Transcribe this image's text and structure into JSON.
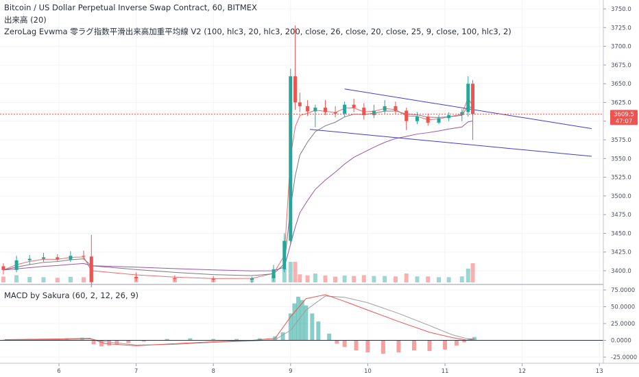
{
  "header": {
    "line1": "Bitcoin / US Dollar Perpetual Inverse Swap Contract, 60, BITMEX",
    "line2": "出来高 (20)",
    "line3": "ZeroLag Evwma 零ラグ指数平滑出来高加重平均線 V2 (100, hlc3, 20, hlc3, 200, close, 26, close, 20, close, 25, 9, close, 100, hlc3, 2)"
  },
  "macd_panel": {
    "title": "MACD by Sakura (60, 2, 12, 26, 9)"
  },
  "price_tag": {
    "value": "3609.5",
    "countdown": "47:07"
  },
  "colors": {
    "up": "#26a69a",
    "down": "#ef5350",
    "channel": "#3b3bd6",
    "ma_fast": "#f06a6a",
    "ma_mid": "#7a7a7a",
    "ma_slow": "#9c54a8",
    "ma_dark": "#555555",
    "macd_line": "#ef5350",
    "signal_line": "#9e9e9e"
  },
  "chart_data": [
    {
      "type": "candlestick",
      "title": "Bitcoin / US Dollar Perpetual Inverse Swap Contract, 60, BITMEX",
      "x_ticks": [
        "6",
        "7",
        "8",
        "9",
        "10",
        "11",
        "12",
        "13"
      ],
      "y_ticks": [
        "3750.0",
        "3725.0",
        "3700.0",
        "3675.0",
        "3650.0",
        "3625.0",
        "3600.0",
        "3575.0",
        "3550.0",
        "3525.0",
        "3500.0",
        "3475.0",
        "3450.0",
        "3425.0",
        "3400.0"
      ],
      "ylim": [
        3385,
        3756
      ],
      "last_price": 3609.5,
      "candles": [
        {
          "x": 5.28,
          "o": 3406,
          "h": 3410,
          "l": 3395,
          "c": 3401
        },
        {
          "x": 5.45,
          "o": 3401,
          "h": 3420,
          "l": 3398,
          "c": 3414
        },
        {
          "x": 5.62,
          "o": 3414,
          "h": 3421,
          "l": 3408,
          "c": 3416
        },
        {
          "x": 5.8,
          "o": 3416,
          "h": 3424,
          "l": 3412,
          "c": 3418
        },
        {
          "x": 5.98,
          "o": 3418,
          "h": 3422,
          "l": 3413,
          "c": 3415
        },
        {
          "x": 6.15,
          "o": 3415,
          "h": 3426,
          "l": 3412,
          "c": 3420
        },
        {
          "x": 6.32,
          "o": 3420,
          "h": 3427,
          "l": 3415,
          "c": 3419
        },
        {
          "x": 6.42,
          "o": 3419,
          "h": 3448,
          "l": 3378,
          "c": 3385
        },
        {
          "x": 7.0,
          "o": 3392,
          "h": 3398,
          "l": 3386,
          "c": 3390
        },
        {
          "x": 7.5,
          "o": 3390,
          "h": 3394,
          "l": 3386,
          "c": 3389
        },
        {
          "x": 8.0,
          "o": 3389,
          "h": 3393,
          "l": 3385,
          "c": 3388
        },
        {
          "x": 8.5,
          "o": 3388,
          "h": 3392,
          "l": 3384,
          "c": 3390
        },
        {
          "x": 8.78,
          "o": 3390,
          "h": 3408,
          "l": 3386,
          "c": 3402
        },
        {
          "x": 8.92,
          "o": 3402,
          "h": 3450,
          "l": 3398,
          "c": 3440
        },
        {
          "x": 9.0,
          "o": 3440,
          "h": 3670,
          "l": 3435,
          "c": 3660
        },
        {
          "x": 9.06,
          "o": 3660,
          "h": 3728,
          "l": 3615,
          "c": 3625
        },
        {
          "x": 9.12,
          "o": 3625,
          "h": 3638,
          "l": 3612,
          "c": 3620
        },
        {
          "x": 9.22,
          "o": 3620,
          "h": 3628,
          "l": 3607,
          "c": 3613
        },
        {
          "x": 9.32,
          "o": 3613,
          "h": 3622,
          "l": 3592,
          "c": 3618
        },
        {
          "x": 9.45,
          "o": 3618,
          "h": 3628,
          "l": 3608,
          "c": 3612
        },
        {
          "x": 9.58,
          "o": 3612,
          "h": 3620,
          "l": 3605,
          "c": 3610
        },
        {
          "x": 9.7,
          "o": 3610,
          "h": 3626,
          "l": 3606,
          "c": 3622
        },
        {
          "x": 9.82,
          "o": 3622,
          "h": 3630,
          "l": 3612,
          "c": 3618
        },
        {
          "x": 9.95,
          "o": 3618,
          "h": 3624,
          "l": 3602,
          "c": 3608
        },
        {
          "x": 10.08,
          "o": 3608,
          "h": 3622,
          "l": 3604,
          "c": 3614
        },
        {
          "x": 10.22,
          "o": 3614,
          "h": 3628,
          "l": 3610,
          "c": 3620
        },
        {
          "x": 10.36,
          "o": 3620,
          "h": 3626,
          "l": 3610,
          "c": 3614
        },
        {
          "x": 10.5,
          "o": 3614,
          "h": 3618,
          "l": 3588,
          "c": 3600
        },
        {
          "x": 10.64,
          "o": 3600,
          "h": 3612,
          "l": 3596,
          "c": 3606
        },
        {
          "x": 10.78,
          "o": 3606,
          "h": 3610,
          "l": 3594,
          "c": 3598
        },
        {
          "x": 10.92,
          "o": 3598,
          "h": 3608,
          "l": 3596,
          "c": 3604
        },
        {
          "x": 11.05,
          "o": 3604,
          "h": 3612,
          "l": 3600,
          "c": 3608
        },
        {
          "x": 11.22,
          "o": 3608,
          "h": 3616,
          "l": 3600,
          "c": 3612
        },
        {
          "x": 11.3,
          "o": 3612,
          "h": 3660,
          "l": 3606,
          "c": 3650
        },
        {
          "x": 11.36,
          "o": 3650,
          "h": 3655,
          "l": 3575,
          "c": 3609.5
        }
      ],
      "channel": [
        {
          "x1": 9.7,
          "y1": 3643,
          "x2": 12.9,
          "y2": 3590
        },
        {
          "x1": 9.25,
          "y1": 3589,
          "x2": 12.9,
          "y2": 3553
        }
      ]
    },
    {
      "type": "bar",
      "title": "MACD by Sakura (60, 2, 12, 26, 9)",
      "y_ticks": [
        "75.0000",
        "50.0000",
        "25.0000",
        "0.0000",
        "-25.0000"
      ],
      "ylim": [
        -27,
        78
      ],
      "histogram": [
        {
          "x": 5.3,
          "v": 1
        },
        {
          "x": 5.6,
          "v": 2
        },
        {
          "x": 5.9,
          "v": 2
        },
        {
          "x": 6.1,
          "v": 3
        },
        {
          "x": 6.3,
          "v": 4
        },
        {
          "x": 6.45,
          "v": -6
        },
        {
          "x": 6.55,
          "v": -9
        },
        {
          "x": 6.65,
          "v": -8
        },
        {
          "x": 6.75,
          "v": -6
        },
        {
          "x": 6.9,
          "v": -4
        },
        {
          "x": 7.1,
          "v": -2
        },
        {
          "x": 7.4,
          "v": 2
        },
        {
          "x": 7.7,
          "v": 3
        },
        {
          "x": 8.0,
          "v": 2
        },
        {
          "x": 8.3,
          "v": 2
        },
        {
          "x": 8.6,
          "v": 3
        },
        {
          "x": 8.8,
          "v": 6
        },
        {
          "x": 8.9,
          "v": 12
        },
        {
          "x": 9.0,
          "v": 40
        },
        {
          "x": 9.05,
          "v": 55
        },
        {
          "x": 9.1,
          "v": 65
        },
        {
          "x": 9.15,
          "v": 60
        },
        {
          "x": 9.2,
          "v": 52
        },
        {
          "x": 9.28,
          "v": 40
        },
        {
          "x": 9.36,
          "v": 28
        },
        {
          "x": 9.5,
          "v": 10
        },
        {
          "x": 9.6,
          "v": -5
        },
        {
          "x": 9.7,
          "v": -10
        },
        {
          "x": 9.85,
          "v": -15
        },
        {
          "x": 10.0,
          "v": -18
        },
        {
          "x": 10.2,
          "v": -20
        },
        {
          "x": 10.4,
          "v": -18
        },
        {
          "x": 10.6,
          "v": -15
        },
        {
          "x": 10.8,
          "v": -16
        },
        {
          "x": 11.0,
          "v": -14
        },
        {
          "x": 11.15,
          "v": -8
        },
        {
          "x": 11.25,
          "v": -3
        },
        {
          "x": 11.32,
          "v": 3
        },
        {
          "x": 11.38,
          "v": 5
        }
      ],
      "macd_line": [
        [
          5.3,
          1
        ],
        [
          6.0,
          2
        ],
        [
          6.4,
          3
        ],
        [
          6.6,
          -5
        ],
        [
          7.0,
          -8
        ],
        [
          7.5,
          -5
        ],
        [
          8.0,
          -2
        ],
        [
          8.5,
          0
        ],
        [
          8.8,
          3
        ],
        [
          9.0,
          35
        ],
        [
          9.2,
          62
        ],
        [
          9.45,
          68
        ],
        [
          9.7,
          58
        ],
        [
          10.0,
          45
        ],
        [
          10.4,
          28
        ],
        [
          10.8,
          12
        ],
        [
          11.1,
          4
        ],
        [
          11.3,
          0
        ],
        [
          11.38,
          2
        ]
      ],
      "signal_line": [
        [
          5.3,
          1
        ],
        [
          6.0,
          1
        ],
        [
          6.4,
          2
        ],
        [
          6.6,
          -2
        ],
        [
          7.0,
          -7
        ],
        [
          7.5,
          -6
        ],
        [
          8.0,
          -3
        ],
        [
          8.5,
          -1
        ],
        [
          8.8,
          1
        ],
        [
          9.0,
          15
        ],
        [
          9.2,
          45
        ],
        [
          9.45,
          66
        ],
        [
          9.7,
          64
        ],
        [
          10.0,
          56
        ],
        [
          10.4,
          40
        ],
        [
          10.8,
          22
        ],
        [
          11.1,
          8
        ],
        [
          11.3,
          2
        ],
        [
          11.38,
          2
        ]
      ]
    }
  ]
}
